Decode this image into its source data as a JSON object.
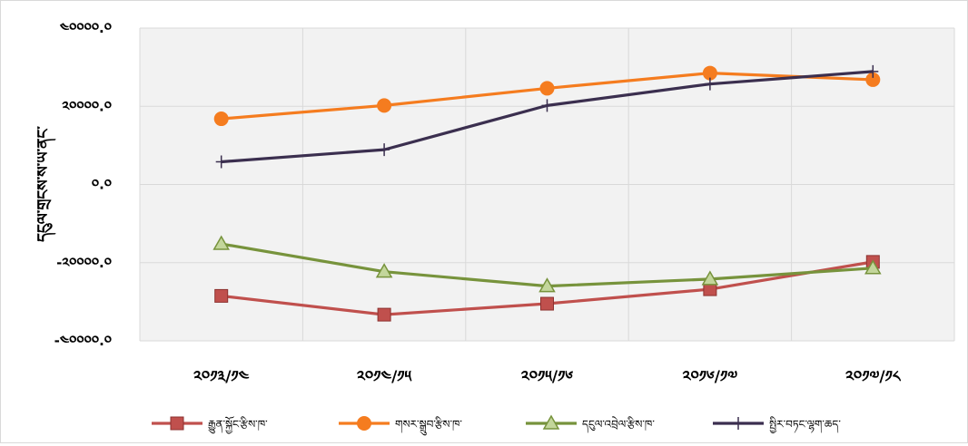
{
  "chart_data": {
    "type": "line",
    "ylabel": "དངུལ་གྲངས་ས་ཡ་ནང་",
    "xlabel": "",
    "categories": [
      "༢༠༡༣/༡༤",
      "༢༠༡༤/༡༥",
      "༢༠༡༥/༡༦",
      "༢༠༡༦/༡༧",
      "༢༠༡༧/༡༨"
    ],
    "y_ticks": [
      "-༤༠༠༠༠.༠",
      "-༢༠༠༠༠.༠",
      "༠.༠",
      "༢༠༠༠༠.༠",
      "༤༠༠༠༠.༠"
    ],
    "ylim": [
      -40000,
      40000
    ],
    "grid": true,
    "legend_position": "bottom",
    "series": [
      {
        "name": "རྒྱུན་སྐྱོང་རྩིས་ཁ་",
        "color": "#c0504d",
        "marker": "square",
        "values": [
          -28500,
          -33300,
          -30500,
          -26800,
          -19800
        ]
      },
      {
        "name": "གསར་སྒྲུབ་རྩིས་ཁ་",
        "color": "#f57c1f",
        "marker": "circle",
        "values": [
          16800,
          20200,
          24600,
          28500,
          26800
        ]
      },
      {
        "name": "དངུལ་འབྲེལ་རྩིས་ཁ་",
        "color": "#77933c",
        "marker": "triangle",
        "values": [
          -15200,
          -22300,
          -26000,
          -24200,
          -21400
        ]
      },
      {
        "name": "སྤྱིར་བཏང་ལྷག་ཆད་",
        "color": "#3b2f4f",
        "marker": "plus",
        "values": [
          5800,
          8900,
          20200,
          25700,
          28900
        ]
      }
    ]
  }
}
